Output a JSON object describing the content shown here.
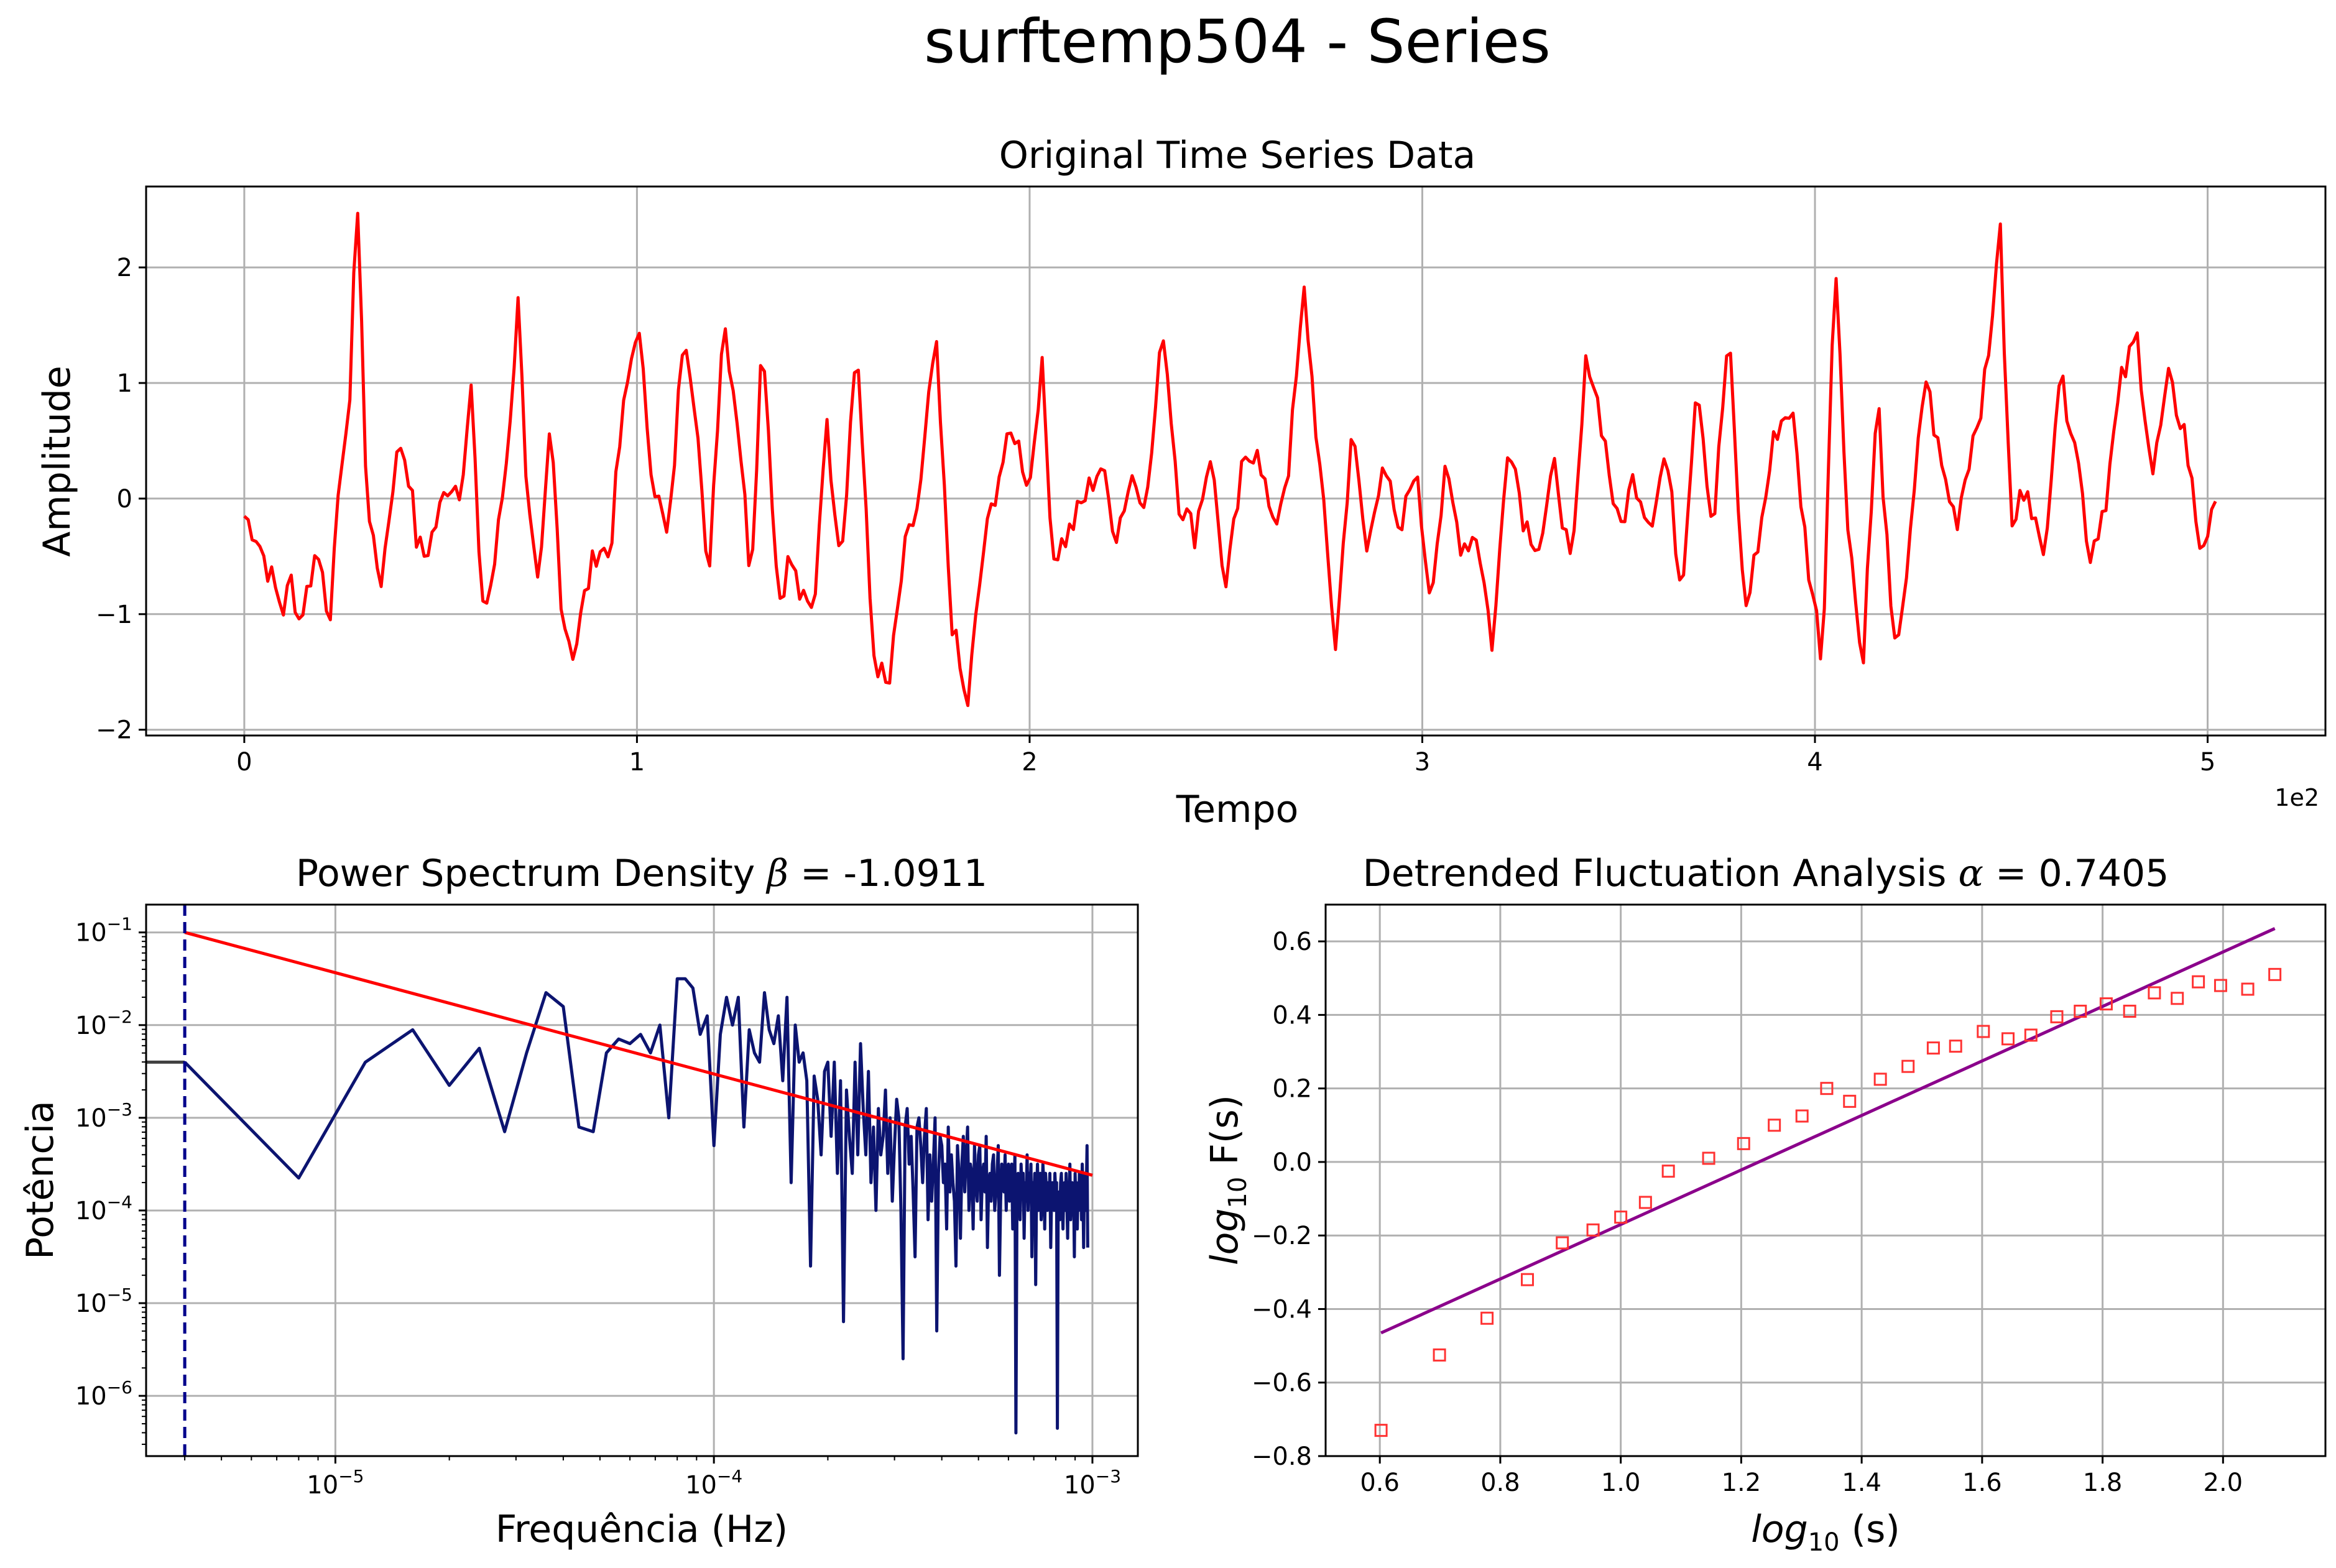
{
  "figure": {
    "suptitle": "surftemp504 - Series"
  },
  "colors": {
    "series": "#ff0000",
    "psd_line": "#0c1470",
    "psd_fit": "#ff0000",
    "dfa_points": "#ff3333",
    "dfa_fit": "#8b008b",
    "grid": "#b0b0b0",
    "vline": "#00008b"
  },
  "chart_data": [
    {
      "type": "line",
      "title": "Original Time Series Data",
      "xlabel": "Tempo",
      "ylabel": "Amplitude",
      "x_scale_label": "1e2",
      "xlim": [
        -0.25,
        5.3
      ],
      "ylim": [
        -2.05,
        2.7
      ],
      "x_ticks": [
        0,
        1,
        2,
        3,
        4,
        5
      ],
      "y_ticks": [
        -2,
        -1,
        0,
        1,
        2
      ],
      "x_tick_labels": [
        "0",
        "1",
        "2",
        "3",
        "4",
        "5"
      ],
      "y_tick_labels": [
        "−2",
        "−1",
        "0",
        "1",
        "2"
      ],
      "grid": true,
      "keypoints_x": [
        0.0,
        0.03,
        0.06,
        0.08,
        0.1,
        0.12,
        0.14,
        0.16,
        0.18,
        0.2,
        0.22,
        0.24,
        0.26,
        0.27,
        0.28,
        0.29,
        0.31,
        0.33,
        0.35,
        0.38,
        0.4,
        0.42,
        0.44,
        0.46,
        0.49,
        0.52,
        0.55,
        0.58,
        0.6,
        0.62,
        0.64,
        0.67,
        0.7,
        0.72,
        0.75,
        0.78,
        0.81,
        0.84,
        0.87,
        0.9,
        0.93,
        0.96,
        1.0,
        1.04,
        1.08,
        1.12,
        1.15,
        1.18,
        1.22,
        1.26,
        1.29,
        1.32,
        1.36,
        1.39,
        1.42,
        1.45,
        1.48,
        1.52,
        1.56,
        1.6,
        1.64,
        1.68,
        1.72,
        1.76,
        1.8,
        1.84,
        1.88,
        1.92,
        1.96,
        2.0,
        2.03,
        2.06,
        2.1,
        2.14,
        2.18,
        2.22,
        2.26,
        2.3,
        2.34,
        2.38,
        2.42,
        2.46,
        2.5,
        2.54,
        2.58,
        2.62,
        2.66,
        2.7,
        2.74,
        2.78,
        2.82,
        2.86,
        2.9,
        2.94,
        2.98,
        3.02,
        3.06,
        3.1,
        3.14,
        3.18,
        3.22,
        3.26,
        3.3,
        3.34,
        3.38,
        3.42,
        3.46,
        3.5,
        3.54,
        3.58,
        3.62,
        3.66,
        3.7,
        3.74,
        3.78,
        3.82,
        3.86,
        3.9,
        3.94,
        3.98,
        4.02,
        4.05,
        4.08,
        4.12,
        4.16,
        4.2,
        4.24,
        4.28,
        4.32,
        4.36,
        4.4,
        4.44,
        4.47,
        4.5,
        4.54,
        4.58,
        4.62,
        4.66,
        4.7,
        4.74,
        4.78,
        4.82,
        4.86,
        4.9,
        4.94,
        4.98,
        5.02
      ],
      "keypoints_y": [
        -0.15,
        -0.3,
        -0.6,
        -0.8,
        -0.95,
        -0.7,
        -1.05,
        -0.8,
        -0.5,
        -0.55,
        -1.2,
        0.2,
        0.45,
        1.0,
        2.1,
        2.5,
        0.2,
        -0.5,
        -0.7,
        0.2,
        0.5,
        0.2,
        -0.4,
        -0.5,
        -0.2,
        0.15,
        0.1,
        1.0,
        -0.8,
        -0.9,
        -0.5,
        0.4,
        1.8,
        0.0,
        -0.9,
        0.65,
        -1.0,
        -1.35,
        -0.8,
        -0.4,
        -0.5,
        0.6,
        1.55,
        0.2,
        -0.4,
        1.55,
        0.8,
        -0.8,
        1.6,
        0.6,
        -0.7,
        1.5,
        -0.9,
        -0.5,
        -0.9,
        -1.0,
        0.7,
        -0.5,
        1.4,
        -1.3,
        -1.7,
        -0.5,
        0.0,
        1.4,
        -1.0,
        -1.85,
        -0.5,
        0.2,
        0.6,
        0.1,
        1.2,
        -0.5,
        -0.3,
        0.0,
        0.3,
        -0.3,
        0.2,
        0.0,
        1.5,
        0.0,
        -0.3,
        0.4,
        -0.8,
        0.2,
        0.5,
        -0.3,
        0.3,
        1.8,
        0.2,
        -1.3,
        0.6,
        -0.5,
        0.4,
        -0.4,
        0.3,
        -0.8,
        0.2,
        -0.4,
        -0.3,
        -1.3,
        0.6,
        -0.2,
        -0.4,
        0.3,
        -0.7,
        1.3,
        0.6,
        -0.3,
        0.2,
        -0.2,
        0.4,
        -0.8,
        1.1,
        -0.3,
        1.45,
        -1.0,
        -0.3,
        0.6,
        0.8,
        -0.5,
        -1.4,
        2.2,
        0.0,
        -1.5,
        0.9,
        -1.4,
        -0.5,
        1.1,
        0.3,
        -0.2,
        0.5,
        1.1,
        2.45,
        -0.3,
        0.2,
        -0.6,
        1.05,
        0.6,
        -0.5,
        0.0,
        1.0,
        1.4,
        0.2,
        1.0,
        0.6,
        -0.4,
        -0.15
      ],
      "series_points": 505,
      "series_color": "#ff0000"
    },
    {
      "type": "line",
      "title_prefix": "Power Spectrum Density ",
      "title_symbol": "β",
      "title_suffix": " = -1.0911",
      "xlabel": "Frequência (Hz)",
      "ylabel": "Potência",
      "x_log": true,
      "y_log": true,
      "xlim_log10": [
        -5.5,
        -2.88
      ],
      "ylim_log10": [
        -6.65,
        -0.7
      ],
      "x_ticks_log10": [
        -5,
        -4,
        -3
      ],
      "y_ticks_log10": [
        -6,
        -5,
        -4,
        -3,
        -2,
        -1
      ],
      "x_tick_labels": [
        {
          "base": "10",
          "exp": "−5"
        },
        {
          "base": "10",
          "exp": "−4"
        },
        {
          "base": "10",
          "exp": "−3"
        }
      ],
      "y_tick_labels": [
        {
          "base": "10",
          "exp": "−6"
        },
        {
          "base": "10",
          "exp": "−5"
        },
        {
          "base": "10",
          "exp": "−4"
        },
        {
          "base": "10",
          "exp": "−3"
        },
        {
          "base": "10",
          "exp": "−2"
        },
        {
          "base": "10",
          "exp": "−1"
        }
      ],
      "grid": true,
      "series": [
        {
          "freq": [
            4e-06,
            8e-06,
            1.2e-05,
            1.6e-05,
            2e-05,
            2.4e-05,
            2.8e-05,
            3.2e-05,
            3.6e-05,
            4e-05,
            4.4e-05,
            4.8e-05,
            5.2e-05,
            5.6e-05,
            6e-05,
            6.4e-05,
            6.8e-05,
            7.2e-05,
            7.6e-05,
            8e-05,
            8.4e-05,
            8.8e-05,
            9.2e-05,
            9.6e-05,
            0.0001,
            0.000104,
            0.000108,
            0.000112,
            0.000116,
            0.00012,
            0.000124,
            0.000128,
            0.000132,
            0.000136,
            0.00014,
            0.000144,
            0.000148,
            0.000152,
            0.000156,
            0.00016,
            0.000164,
            0.000168,
            0.000172,
            0.000176,
            0.00018,
            0.000184,
            0.000188,
            0.000192,
            0.000196,
            0.0002,
            0.000204,
            0.000208,
            0.000212,
            0.000216,
            0.00022,
            0.000224,
            0.000228,
            0.000232,
            0.000236,
            0.00024,
            0.000244,
            0.000248,
            0.000252,
            0.000256,
            0.00026,
            0.000264,
            0.000268,
            0.000272,
            0.000276,
            0.00028,
            0.000284,
            0.000288,
            0.000292,
            0.000296,
            0.0003,
            0.000304,
            0.000308,
            0.000312,
            0.000316,
            0.00032,
            0.000324,
            0.000328,
            0.000332,
            0.000336,
            0.00034,
            0.000344,
            0.000348,
            0.000352,
            0.000356,
            0.00036,
            0.000364,
            0.000368,
            0.000372,
            0.000376,
            0.00038,
            0.000384,
            0.000388,
            0.000392,
            0.000396,
            0.0004,
            0.000404,
            0.000408,
            0.000412,
            0.000416,
            0.00042,
            0.000424,
            0.000428,
            0.000432,
            0.000436,
            0.00044,
            0.000444,
            0.000448,
            0.000452,
            0.000456,
            0.00046,
            0.000464,
            0.000468,
            0.000472,
            0.000476,
            0.00048,
            0.000484,
            0.000488,
            0.000492,
            0.000496,
            0.0005,
            0.000504,
            0.000508,
            0.000512,
            0.000516,
            0.00052,
            0.000524,
            0.000528,
            0.000532,
            0.000536,
            0.00054,
            0.000544,
            0.000548,
            0.000552,
            0.000556,
            0.00056,
            0.000564,
            0.000568,
            0.000572,
            0.000576,
            0.00058,
            0.000584,
            0.000588,
            0.000592,
            0.000596,
            0.0006,
            0.000604,
            0.000608,
            0.000612,
            0.000616,
            0.00062,
            0.000624,
            0.000628,
            0.000632,
            0.000636,
            0.00064,
            0.000644,
            0.000648,
            0.000652,
            0.000656,
            0.00066,
            0.000664,
            0.000668,
            0.000672,
            0.000676,
            0.00068,
            0.000684,
            0.000688,
            0.000692,
            0.000696,
            0.0007,
            0.000704,
            0.000708,
            0.000712,
            0.000716,
            0.00072,
            0.000724,
            0.000728,
            0.000732,
            0.000736,
            0.00074,
            0.000744,
            0.000748,
            0.000752,
            0.000756,
            0.00076,
            0.000764,
            0.000768,
            0.000772,
            0.000776,
            0.00078,
            0.000784,
            0.000788,
            0.000792,
            0.000796,
            0.0008,
            0.000804,
            0.000808,
            0.000812,
            0.000816,
            0.00082,
            0.000824,
            0.000828,
            0.000832,
            0.000836,
            0.00084,
            0.000844,
            0.000848,
            0.000852,
            0.000856,
            0.00086,
            0.000864,
            0.000868,
            0.000872,
            0.000876,
            0.00088,
            0.000884,
            0.000888,
            0.000892,
            0.000896,
            0.0009,
            0.000904,
            0.000908,
            0.000912,
            0.000916,
            0.00092,
            0.000924,
            0.000928,
            0.000932,
            0.000936,
            0.00094,
            0.000944,
            0.000948,
            0.000952,
            0.000956,
            0.00096,
            0.000964,
            0.000968,
            0.000972,
            0.000976,
            0.00098,
            0.000984,
            0.000988,
            0.000992,
            0.000996
          ],
          "power_log10": [
            -2.4,
            -3.65,
            -2.4,
            -2.05,
            -2.65,
            -2.25,
            -3.15,
            -2.3,
            -1.65,
            -1.8,
            -3.1,
            -3.15,
            -2.3,
            -2.15,
            -2.2,
            -2.1,
            -2.3,
            -2.0,
            -3.0,
            -1.5,
            -1.5,
            -1.6,
            -2.1,
            -1.9,
            -3.3,
            -2.1,
            -1.7,
            -2.0,
            -1.7,
            -3.1,
            -2.05,
            -2.3,
            -2.4,
            -1.65,
            -2.05,
            -2.2,
            -1.9,
            -2.6,
            -1.7,
            -3.7,
            -2.0,
            -2.4,
            -2.3,
            -2.6,
            -4.6,
            -2.55,
            -2.8,
            -3.4,
            -2.5,
            -2.4,
            -3.2,
            -2.4,
            -3.6,
            -2.6,
            -5.2,
            -2.7,
            -3.2,
            -3.6,
            -2.4,
            -3.4,
            -2.2,
            -2.9,
            -3.4,
            -2.5,
            -3.7,
            -3.1,
            -4.0,
            -2.9,
            -3.4,
            -3.2,
            -2.7,
            -3.6,
            -3.0,
            -3.9,
            -3.3,
            -2.8,
            -3.0,
            -4.0,
            -5.6,
            -3.1,
            -2.9,
            -3.5,
            -3.2,
            -3.8,
            -4.5,
            -3.1,
            -3.0,
            -3.3,
            -3.7,
            -3.2,
            -2.9,
            -4.1,
            -3.4,
            -3.9,
            -3.5,
            -3.0,
            -5.3,
            -3.6,
            -3.2,
            -3.3,
            -3.7,
            -3.5,
            -4.2,
            -3.1,
            -3.8,
            -3.4,
            -3.7,
            -3.9,
            -4.6,
            -3.3,
            -3.6,
            -4.3,
            -3.5,
            -3.2,
            -3.8,
            -3.4,
            -3.1,
            -4.0,
            -3.5,
            -3.6,
            -4.2,
            -3.3,
            -3.7,
            -3.9,
            -3.4,
            -3.3,
            -4.1,
            -3.6,
            -3.5,
            -3.8,
            -3.2,
            -4.4,
            -3.7,
            -3.6,
            -3.9,
            -3.5,
            -3.4,
            -4.0,
            -3.8,
            -3.6,
            -3.3,
            -4.7,
            -3.9,
            -3.5,
            -3.7,
            -3.8,
            -3.4,
            -4.0,
            -3.6,
            -3.5,
            -3.9,
            -3.7,
            -3.5,
            -4.2,
            -3.8,
            -3.4,
            -6.4,
            -3.9,
            -3.6,
            -3.7,
            -4.1,
            -3.5,
            -3.8,
            -3.6,
            -4.3,
            -3.7,
            -3.9,
            -3.4,
            -4.0,
            -3.6,
            -3.8,
            -3.5,
            -4.5,
            -3.7,
            -3.9,
            -3.6,
            -4.8,
            -3.8,
            -3.5,
            -4.0,
            -3.7,
            -3.6,
            -4.1,
            -3.9,
            -3.5,
            -3.7,
            -4.2,
            -3.6,
            -3.8,
            -4.0,
            -3.7,
            -3.9,
            -3.6,
            -4.4,
            -3.8,
            -3.7,
            -3.9,
            -4.0,
            -3.6,
            -3.8,
            -3.7,
            -6.35,
            -3.9,
            -3.8,
            -4.1,
            -3.7,
            -3.6,
            -3.9,
            -4.2,
            -3.8,
            -3.7,
            -4.0,
            -3.6,
            -3.9,
            -4.3,
            -3.7,
            -3.8,
            -3.5,
            -4.1,
            -3.9,
            -3.7,
            -4.0,
            -3.8,
            -4.5,
            -3.6,
            -3.9,
            -3.7,
            -4.2,
            -3.8,
            -4.0,
            -3.6,
            -3.9,
            -3.7,
            -4.1,
            -3.5,
            -3.8,
            -4.4,
            -3.6,
            -3.9,
            -4.0,
            -3.7,
            -3.3,
            -4.4
          ]
        }
      ],
      "fit": {
        "beta": -1.0911,
        "f_start": 4e-06,
        "f_end": 0.001,
        "p_start_log10": -1.0,
        "p_end_log10": -3.62
      },
      "vline_freq": 4e-06,
      "left_segment_power_log10": -2.4
    },
    {
      "type": "scatter",
      "title_prefix": "Detrended Fluctuation Analysis ",
      "title_symbol": "α",
      "title_suffix": " = 0.7405",
      "xlabel_italic": "log",
      "xlabel_sub": "10",
      "xlabel_rest": " (s)",
      "ylabel_italic": "log",
      "ylabel_sub": "10",
      "ylabel_rest": " F(s)",
      "xlim": [
        0.51,
        2.17
      ],
      "ylim": [
        -0.8,
        0.7
      ],
      "x_ticks": [
        0.6,
        0.8,
        1.0,
        1.2,
        1.4,
        1.6,
        1.8,
        2.0
      ],
      "y_ticks": [
        -0.8,
        -0.6,
        -0.4,
        -0.2,
        0.0,
        0.2,
        0.4,
        0.6
      ],
      "x_tick_labels": [
        "0.6",
        "0.8",
        "1.0",
        "1.2",
        "1.4",
        "1.6",
        "1.8",
        "2.0"
      ],
      "y_tick_labels": [
        "−0.8",
        "−0.6",
        "−0.4",
        "−0.2",
        "0.0",
        "0.2",
        "0.4",
        "0.6"
      ],
      "grid": true,
      "points": [
        {
          "x": 0.602,
          "y": -0.73
        },
        {
          "x": 0.699,
          "y": -0.525
        },
        {
          "x": 0.778,
          "y": -0.425
        },
        {
          "x": 0.845,
          "y": -0.32
        },
        {
          "x": 0.903,
          "y": -0.22
        },
        {
          "x": 0.954,
          "y": -0.185
        },
        {
          "x": 1.0,
          "y": -0.15
        },
        {
          "x": 1.041,
          "y": -0.11
        },
        {
          "x": 1.079,
          "y": -0.025
        },
        {
          "x": 1.146,
          "y": 0.01
        },
        {
          "x": 1.204,
          "y": 0.05
        },
        {
          "x": 1.255,
          "y": 0.1
        },
        {
          "x": 1.301,
          "y": 0.125
        },
        {
          "x": 1.342,
          "y": 0.2
        },
        {
          "x": 1.38,
          "y": 0.165
        },
        {
          "x": 1.431,
          "y": 0.225
        },
        {
          "x": 1.477,
          "y": 0.26
        },
        {
          "x": 1.519,
          "y": 0.31
        },
        {
          "x": 1.556,
          "y": 0.315
        },
        {
          "x": 1.602,
          "y": 0.355
        },
        {
          "x": 1.643,
          "y": 0.335
        },
        {
          "x": 1.681,
          "y": 0.345
        },
        {
          "x": 1.724,
          "y": 0.395
        },
        {
          "x": 1.763,
          "y": 0.41
        },
        {
          "x": 1.806,
          "y": 0.43
        },
        {
          "x": 1.845,
          "y": 0.41
        },
        {
          "x": 1.886,
          "y": 0.46
        },
        {
          "x": 1.924,
          "y": 0.445
        },
        {
          "x": 1.959,
          "y": 0.49
        },
        {
          "x": 1.996,
          "y": 0.48
        },
        {
          "x": 2.041,
          "y": 0.47
        },
        {
          "x": 2.086,
          "y": 0.51
        }
      ],
      "fit": {
        "x_start": 0.602,
        "y_start": -0.465,
        "x_end": 2.086,
        "y_end": 0.635,
        "alpha": 0.7405
      }
    }
  ]
}
